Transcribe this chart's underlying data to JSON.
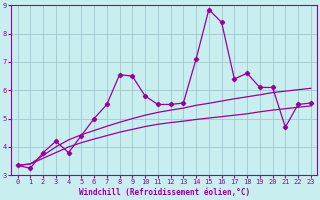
{
  "title": "",
  "xlabel": "Windchill (Refroidissement éolien,°C)",
  "ylabel": "",
  "background_color": "#c8eef0",
  "grid_color": "#a0c8d0",
  "line_color": "#990099",
  "x_data": [
    0,
    1,
    2,
    3,
    4,
    5,
    6,
    7,
    8,
    9,
    10,
    11,
    12,
    13,
    14,
    15,
    16,
    17,
    18,
    19,
    20,
    21,
    22,
    23
  ],
  "y_main": [
    3.35,
    3.25,
    3.8,
    4.2,
    3.8,
    4.4,
    5.0,
    5.5,
    6.55,
    6.5,
    5.8,
    5.5,
    5.5,
    5.55,
    7.1,
    8.85,
    8.4,
    6.4,
    6.6,
    6.1,
    6.1,
    4.7,
    5.5,
    5.55
  ],
  "y_lower": [
    3.35,
    3.4,
    3.6,
    3.8,
    4.0,
    4.15,
    4.28,
    4.4,
    4.52,
    4.62,
    4.72,
    4.8,
    4.86,
    4.91,
    4.97,
    5.02,
    5.07,
    5.12,
    5.17,
    5.24,
    5.3,
    5.35,
    5.4,
    5.45
  ],
  "y_upper": [
    3.35,
    3.4,
    3.7,
    4.0,
    4.25,
    4.43,
    4.58,
    4.73,
    4.87,
    5.0,
    5.12,
    5.22,
    5.3,
    5.37,
    5.47,
    5.54,
    5.62,
    5.7,
    5.77,
    5.84,
    5.92,
    5.97,
    6.02,
    6.07
  ],
  "ylim": [
    3.0,
    9.0
  ],
  "xlim": [
    -0.5,
    23.5
  ],
  "yticks": [
    3,
    4,
    5,
    6,
    7,
    8,
    9
  ],
  "xticks": [
    0,
    1,
    2,
    3,
    4,
    5,
    6,
    7,
    8,
    9,
    10,
    11,
    12,
    13,
    14,
    15,
    16,
    17,
    18,
    19,
    20,
    21,
    22,
    23
  ],
  "tick_fontsize": 5.0,
  "xlabel_fontsize": 5.5
}
